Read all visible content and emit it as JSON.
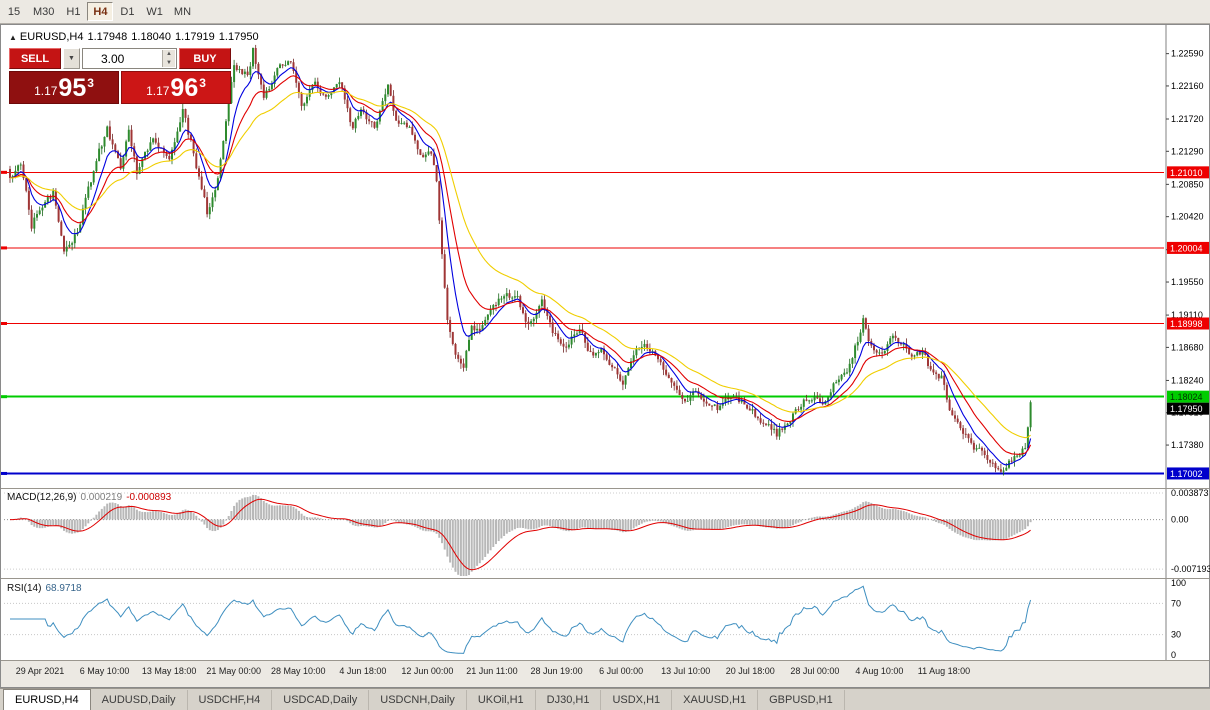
{
  "icons": {
    "expand_triangle": "▲",
    "dropdown_arrow": "▼",
    "spinner_up": "▲",
    "spinner_down": "▼"
  },
  "ui": {
    "toolbar": {
      "timeframes": [
        "15",
        "M30",
        "H1",
        "H4",
        "D1",
        "W1",
        "MN"
      ],
      "active": "H4"
    },
    "tabs": [
      "EURUSD,H4",
      "AUDUSD,Daily",
      "USDCHF,H4",
      "USDCAD,Daily",
      "USDCNH,Daily",
      "UKOil,H1",
      "DJ30,H1",
      "USDX,H1",
      "XAUUSD,H1",
      "GBPUSD,H1"
    ],
    "active_tab": "EURUSD,H4"
  },
  "symbol_header": {
    "symbol": "EURUSD,H4",
    "open": "1.17948",
    "high": "1.18040",
    "low": "1.17919",
    "close": "1.17950"
  },
  "trade": {
    "sell_label": "SELL",
    "buy_label": "BUY",
    "volume": "3.00",
    "sell_price": {
      "prefix": "1.17",
      "big": "95",
      "sup": "3"
    },
    "buy_price": {
      "prefix": "1.17",
      "big": "96",
      "sup": "3"
    }
  },
  "indicators": {
    "macd": {
      "name": "MACD(12,26,9)",
      "value_main": "0.000219",
      "value_signal": "-0.000893",
      "scale_top": "0.003873",
      "scale_zero": "0.00",
      "scale_bottom": "-0.007193",
      "params": [
        12,
        26,
        9
      ]
    },
    "rsi": {
      "name": "RSI(14)",
      "value": "68.9718",
      "scale": [
        "100",
        "70",
        "30",
        "0"
      ],
      "levels": [
        70,
        30
      ],
      "period": 14
    }
  },
  "chart_data": {
    "type": "candlestick",
    "symbol": "EURUSD",
    "timeframe": "H4",
    "y_axis": {
      "price_top": 1.22878,
      "price_bottom": 1.16835,
      "ticks": [
        "1.22590",
        "1.22160",
        "1.21720",
        "1.21290",
        "1.20850",
        "1.20420",
        "1.19980",
        "1.19550",
        "1.19110",
        "1.18680",
        "1.18240",
        "1.17810",
        "1.17380"
      ]
    },
    "x_labels": [
      "29 Apr 2021",
      "6 May 10:00",
      "13 May 18:00",
      "21 May 00:00",
      "28 May 10:00",
      "4 Jun 18:00",
      "12 Jun 00:00",
      "21 Jun 11:00",
      "28 Jun 19:00",
      "6 Jul 00:00",
      "13 Jul 10:00",
      "20 Jul 18:00",
      "28 Jul 00:00",
      "4 Aug 10:00",
      "11 Aug 18:00"
    ],
    "hlines": [
      {
        "price": 1.2101,
        "label": "1.21010",
        "color": "#EE0000",
        "width": 1,
        "text_color": "#FFFFFF"
      },
      {
        "price": 1.20004,
        "label": "1.20004",
        "color": "#EE0000",
        "width": 1,
        "text_color": "#FFFFFF"
      },
      {
        "price": 1.18998,
        "label": "1.18998",
        "color": "#EE0000",
        "width": 1,
        "text_color": "#FFFFFF"
      },
      {
        "price": 1.18024,
        "label": "1.18024",
        "color": "#00CC00",
        "width": 2,
        "text_color": "#003300"
      },
      {
        "price": 1.17002,
        "label": "1.17002",
        "color": "#0000CC",
        "width": 2,
        "text_color": "#FFFFFF"
      }
    ],
    "current_price": {
      "value": 1.1795,
      "label": "1.17950",
      "bg": "#000000",
      "text_color": "#FFFFFF"
    },
    "candles": {
      "count": 379,
      "up_color": "#2E8B2E",
      "up_edge": "#1B651B",
      "down_color": "#A03636",
      "down_edge": "#6E2424",
      "close_anchors": [
        [
          0,
          1.209
        ],
        [
          4,
          1.2115
        ],
        [
          8,
          1.203
        ],
        [
          12,
          1.2055
        ],
        [
          16,
          1.2075
        ],
        [
          20,
          1.1992
        ],
        [
          25,
          1.2022
        ],
        [
          32,
          1.212
        ],
        [
          36,
          1.2158
        ],
        [
          41,
          1.2108
        ],
        [
          44,
          1.2158
        ],
        [
          47,
          1.2103
        ],
        [
          53,
          1.2148
        ],
        [
          59,
          1.2118
        ],
        [
          64,
          1.2185
        ],
        [
          69,
          1.211
        ],
        [
          73,
          1.2048
        ],
        [
          77,
          1.2092
        ],
        [
          83,
          1.2245
        ],
        [
          88,
          1.2228
        ],
        [
          90,
          1.2262
        ],
        [
          94,
          1.2198
        ],
        [
          99,
          1.2238
        ],
        [
          104,
          1.2252
        ],
        [
          108,
          1.219
        ],
        [
          113,
          1.2222
        ],
        [
          117,
          1.2198
        ],
        [
          122,
          1.2222
        ],
        [
          127,
          1.2158
        ],
        [
          130,
          1.2188
        ],
        [
          135,
          1.2158
        ],
        [
          140,
          1.2215
        ],
        [
          143,
          1.2172
        ],
        [
          148,
          1.2158
        ],
        [
          152,
          1.2122
        ],
        [
          156,
          1.213
        ],
        [
          158,
          1.2088
        ],
        [
          160,
          1.1988
        ],
        [
          162,
          1.1905
        ],
        [
          165,
          1.1855
        ],
        [
          168,
          1.1845
        ],
        [
          171,
          1.1898
        ],
        [
          174,
          1.1888
        ],
        [
          178,
          1.1922
        ],
        [
          184,
          1.194
        ],
        [
          188,
          1.1932
        ],
        [
          192,
          1.1898
        ],
        [
          197,
          1.1928
        ],
        [
          201,
          1.1888
        ],
        [
          206,
          1.1868
        ],
        [
          211,
          1.1893
        ],
        [
          215,
          1.1858
        ],
        [
          219,
          1.1863
        ],
        [
          224,
          1.1838
        ],
        [
          227,
          1.182
        ],
        [
          231,
          1.1862
        ],
        [
          236,
          1.187
        ],
        [
          240,
          1.1852
        ],
        [
          243,
          1.1828
        ],
        [
          247,
          1.1808
        ],
        [
          251,
          1.1798
        ],
        [
          254,
          1.1813
        ],
        [
          258,
          1.1793
        ],
        [
          262,
          1.1788
        ],
        [
          267,
          1.1803
        ],
        [
          271,
          1.1798
        ],
        [
          276,
          1.1778
        ],
        [
          279,
          1.1768
        ],
        [
          284,
          1.1753
        ],
        [
          289,
          1.1773
        ],
        [
          293,
          1.1793
        ],
        [
          298,
          1.1803
        ],
        [
          301,
          1.1788
        ],
        [
          305,
          1.1818
        ],
        [
          310,
          1.1838
        ],
        [
          314,
          1.1878
        ],
        [
          316,
          1.1905
        ],
        [
          319,
          1.1868
        ],
        [
          323,
          1.1862
        ],
        [
          327,
          1.1885
        ],
        [
          330,
          1.1873
        ],
        [
          334,
          1.1858
        ],
        [
          338,
          1.1863
        ],
        [
          341,
          1.1838
        ],
        [
          345,
          1.1828
        ],
        [
          348,
          1.1788
        ],
        [
          352,
          1.1763
        ],
        [
          356,
          1.1738
        ],
        [
          359,
          1.1733
        ],
        [
          363,
          1.1718
        ],
        [
          367,
          1.1703
        ],
        [
          370,
          1.1713
        ],
        [
          374,
          1.1728
        ],
        [
          376,
          1.1738
        ],
        [
          378,
          1.1794
        ]
      ]
    },
    "moving_averages": [
      {
        "period": 8,
        "color": "#0000E0"
      },
      {
        "period": 17,
        "color": "#E00000"
      },
      {
        "period": 34,
        "color": "#F0CE00"
      }
    ],
    "macd_plot": {
      "hist_color": "#B8B8B8",
      "signal_color": "#E00000",
      "v_top": 0.0043,
      "v_bottom": -0.0082
    },
    "rsi_plot": {
      "color": "#3F8FC0"
    }
  }
}
